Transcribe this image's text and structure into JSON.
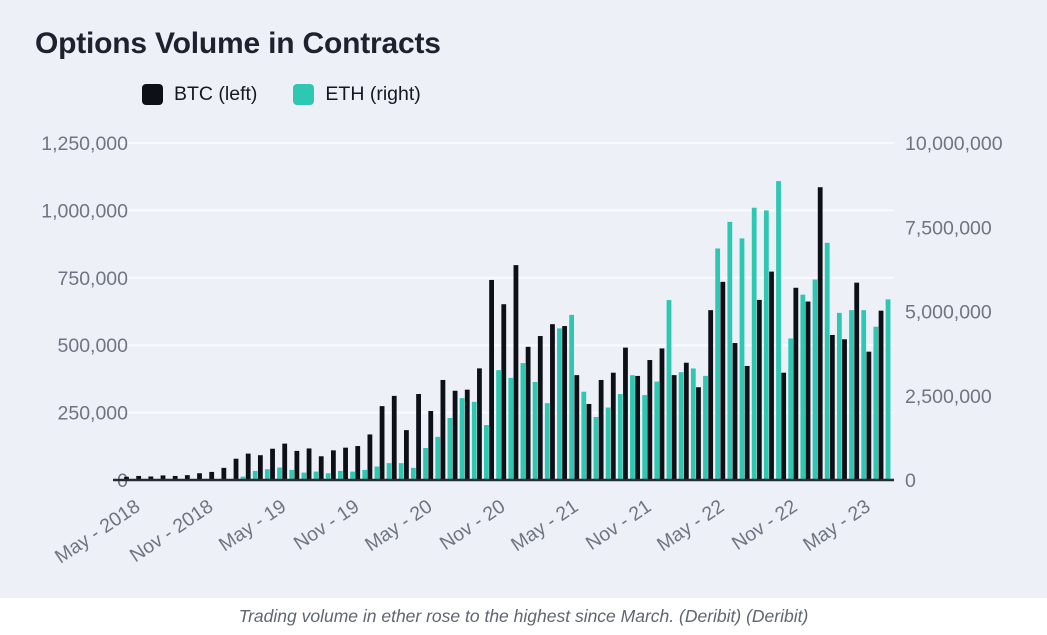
{
  "page": {
    "chart_background": "#eef0f8",
    "caption_background": "#ffffff"
  },
  "chart": {
    "title": "Options Volume in Contracts",
    "caption": "Trading volume in ether rose to the highest since March. (Deribit) (Deribit)",
    "legend": [
      {
        "label": "BTC (left)",
        "color": "#0d1117"
      },
      {
        "label": "ETH (right)",
        "color": "#2ec8b2"
      }
    ]
  },
  "chart_data": {
    "type": "bar",
    "title": "Options Volume in Contracts",
    "grid": true,
    "legend_position": "top-left",
    "background": "#eef0f8",
    "gridline_color": "#fafbfe",
    "axis_line_color": "#262a33",
    "tick_label_color": "#6e7580",
    "x": [
      "May 2018",
      "Jun 2018",
      "Jul 2018",
      "Aug 2018",
      "Sep 2018",
      "Oct 2018",
      "Nov 2018",
      "Dec 2018",
      "Jan 2019",
      "Feb 2019",
      "Mar 2019",
      "Apr 2019",
      "May 2019",
      "Jun 2019",
      "Jul 2019",
      "Aug 2019",
      "Sep 2019",
      "Oct 2019",
      "Nov 2019",
      "Dec 2019",
      "Jan 2020",
      "Feb 2020",
      "Mar 2020",
      "Apr 2020",
      "May 2020",
      "Jun 2020",
      "Jul 2020",
      "Aug 2020",
      "Sep 2020",
      "Oct 2020",
      "Nov 2020",
      "Dec 2020",
      "Jan 2021",
      "Feb 2021",
      "Mar 2021",
      "Apr 2021",
      "May 2021",
      "Jun 2021",
      "Jul 2021",
      "Aug 2021",
      "Sep 2021",
      "Oct 2021",
      "Nov 2021",
      "Dec 2021",
      "Jan 2022",
      "Feb 2022",
      "Mar 2022",
      "Apr 2022",
      "May 2022",
      "Jun 2022",
      "Jul 2022",
      "Aug 2022",
      "Sep 2022",
      "Oct 2022",
      "Nov 2022",
      "Dec 2022",
      "Jan 2023",
      "Feb 2023",
      "Mar 2023",
      "Apr 2023",
      "May 2023",
      "Jun 2023",
      "Jul 2023"
    ],
    "x_tick_labels": [
      "May - 2018",
      "Nov - 2018",
      "May - 19",
      "Nov - 19",
      "May - 20",
      "Nov - 20",
      "May - 21",
      "Nov - 21",
      "May - 22",
      "Nov - 22",
      "May - 23"
    ],
    "x_tick_every": 6,
    "series": [
      {
        "name": "BTC (left)",
        "axis": "left",
        "color": "#0d1117",
        "values": [
          12000,
          15000,
          13000,
          17000,
          15000,
          18000,
          25000,
          30000,
          45000,
          79000,
          98000,
          92000,
          116000,
          135000,
          108000,
          117000,
          88000,
          110000,
          120000,
          126000,
          169000,
          274000,
          312000,
          185000,
          319000,
          256000,
          371000,
          331000,
          335000,
          414000,
          742000,
          652000,
          797000,
          494000,
          534000,
          578000,
          571000,
          389000,
          282000,
          371000,
          398000,
          491000,
          386000,
          445000,
          488000,
          389000,
          435000,
          344000,
          630000,
          735000,
          508000,
          423000,
          668000,
          773000,
          398000,
          713000,
          662000,
          1086000,
          538000,
          522000,
          732000,
          476000,
          628000
        ]
      },
      {
        "name": "ETH (right)",
        "axis": "right",
        "color": "#2ec8b2",
        "values": [
          0,
          0,
          0,
          0,
          0,
          0,
          0,
          0,
          0,
          100000,
          270000,
          320000,
          370000,
          300000,
          220000,
          250000,
          200000,
          270000,
          250000,
          300000,
          400000,
          500000,
          500000,
          360000,
          950000,
          1280000,
          1840000,
          2430000,
          2320000,
          1630000,
          3260000,
          3030000,
          3470000,
          2910000,
          2280000,
          4500000,
          4900000,
          2620000,
          1870000,
          2150000,
          2550000,
          3110000,
          2520000,
          2920000,
          5340000,
          3200000,
          3310000,
          3090000,
          6870000,
          7660000,
          7170000,
          8080000,
          8000000,
          8870000,
          4200000,
          5500000,
          5950000,
          7040000,
          4960000,
          5040000,
          5040000,
          4550000,
          5360000
        ]
      }
    ],
    "left_axis": {
      "ticks": [
        "0",
        "250,000",
        "500,000",
        "750,000",
        "1,000,000",
        "1,250,000"
      ],
      "min": 0,
      "max": 1250000,
      "step": 250000
    },
    "right_axis": {
      "ticks": [
        "0",
        "2,500,000",
        "5,000,000",
        "7,500,000",
        "10,000,000"
      ],
      "min": 0,
      "max": 10000000,
      "step": 2500000
    }
  }
}
